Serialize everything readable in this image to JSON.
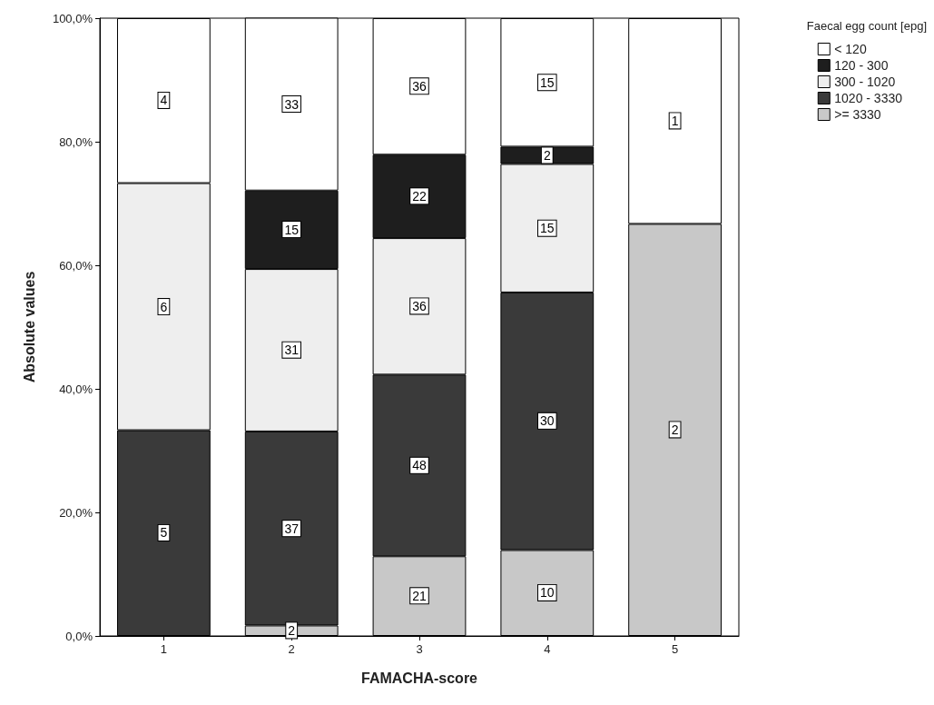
{
  "chart_data": {
    "type": "bar",
    "stacked": true,
    "xlabel": "FAMACHA-score",
    "ylabel": "Absolute values",
    "legend_title": "Faecal egg count [epg]",
    "legend": "top right",
    "grid": false,
    "categories": [
      "1",
      "2",
      "3",
      "4",
      "5"
    ],
    "ylim": [
      0,
      100
    ],
    "yticks": [
      {
        "value": 0,
        "label": "0,0%"
      },
      {
        "value": 20,
        "label": "20,0%"
      },
      {
        "value": 40,
        "label": "40,0%"
      },
      {
        "value": 60,
        "label": "60,0%"
      },
      {
        "value": 80,
        "label": "80,0%"
      },
      {
        "value": 100,
        "label": "100,0%"
      }
    ],
    "series": [
      {
        "name": ">= 3330",
        "color": "#c8c8c8",
        "values": [
          null,
          1.7,
          12.9,
          13.9,
          66.7
        ]
      },
      {
        "name": "1020 - 3330",
        "color": "#3a3a3a",
        "values": [
          33.3,
          31.4,
          29.4,
          41.7,
          null
        ]
      },
      {
        "name": "300 - 1020",
        "color": "#eeeeee",
        "values": [
          40.0,
          26.3,
          22.1,
          20.8,
          null
        ]
      },
      {
        "name": "120 - 300",
        "color": "#1e1e1e",
        "values": [
          null,
          12.7,
          13.5,
          2.8,
          null
        ]
      },
      {
        "name": "< 120",
        "color": "#ffffff",
        "values": [
          26.7,
          28.0,
          22.1,
          20.8,
          33.3
        ]
      }
    ],
    "annotations": [
      {
        "text": "5",
        "x": "1",
        "y": 16.7
      },
      {
        "text": "6",
        "x": "1",
        "y": 53.3
      },
      {
        "text": "4",
        "x": "1",
        "y": 86.7
      },
      {
        "text": "2",
        "x": "2",
        "y": 0.9
      },
      {
        "text": "37",
        "x": "2",
        "y": 17.4
      },
      {
        "text": "31",
        "x": "2",
        "y": 46.3
      },
      {
        "text": "15",
        "x": "2",
        "y": 65.8
      },
      {
        "text": "33",
        "x": "2",
        "y": 86.1
      },
      {
        "text": "21",
        "x": "3",
        "y": 6.5
      },
      {
        "text": "48",
        "x": "3",
        "y": 27.6
      },
      {
        "text": "36",
        "x": "3",
        "y": 53.4
      },
      {
        "text": "22",
        "x": "3",
        "y": 71.2
      },
      {
        "text": "36",
        "x": "3",
        "y": 89.0
      },
      {
        "text": "10",
        "x": "4",
        "y": 7.0
      },
      {
        "text": "30",
        "x": "4",
        "y": 34.8
      },
      {
        "text": "15",
        "x": "4",
        "y": 66.0
      },
      {
        "text": "2",
        "x": "4",
        "y": 77.8
      },
      {
        "text": "15",
        "x": "4",
        "y": 89.6
      },
      {
        "text": "2",
        "x": "5",
        "y": 33.4
      },
      {
        "text": "1",
        "x": "5",
        "y": 83.4
      }
    ]
  }
}
